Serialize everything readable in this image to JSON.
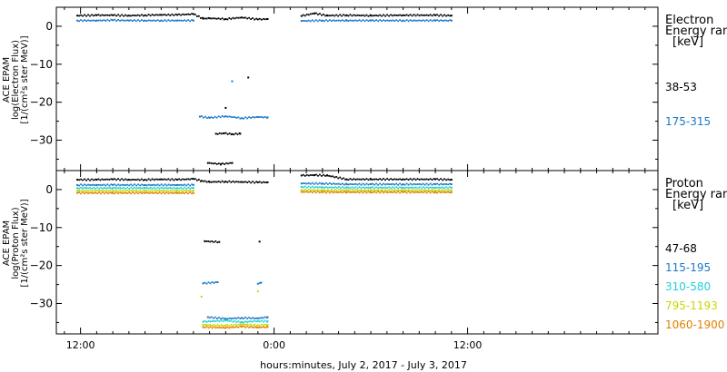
{
  "chart_data": [
    {
      "type": "scatter",
      "ylabel_lines": [
        "ACE EPAM",
        "log(Electron Flux)",
        "[1/(cm²s ster MeV)]"
      ],
      "ylim": [
        -38,
        5
      ],
      "yticks": [
        0,
        -10,
        -20,
        -30
      ],
      "legend_title": [
        "Electron",
        "Energy range",
        "[keV]"
      ],
      "series": [
        {
          "name": "38-53",
          "color": "#000000",
          "values": [
            [
              -12.2,
              2.8
            ],
            [
              -11.0,
              2.9
            ],
            [
              -10.0,
              2.9
            ],
            [
              -9.0,
              2.8
            ],
            [
              -8.0,
              2.9
            ],
            [
              -7.0,
              3.0
            ],
            [
              -6.0,
              3.0
            ],
            [
              -5.0,
              3.2
            ],
            [
              -4.4,
              2.0
            ],
            [
              -4.0,
              2.1
            ],
            [
              -3.0,
              1.9
            ],
            [
              -2.0,
              2.3
            ],
            [
              -1.0,
              1.8
            ],
            [
              -0.4,
              1.9
            ],
            [
              -4.1,
              -36
            ],
            [
              -3.3,
              -36.3
            ],
            [
              -2.6,
              -36
            ],
            [
              -3.6,
              -28.3
            ],
            [
              -3.1,
              -28.2
            ],
            [
              -2.6,
              -28.4
            ],
            [
              -2.1,
              -28.3
            ],
            [
              -3.0,
              -21.5
            ],
            [
              -1.6,
              -13.5
            ],
            [
              1.7,
              2.7
            ],
            [
              2.5,
              3.4
            ],
            [
              3.3,
              2.8
            ],
            [
              4.5,
              2.9
            ],
            [
              6.0,
              2.8
            ],
            [
              8.0,
              2.9
            ],
            [
              10.0,
              2.9
            ],
            [
              11.0,
              2.8
            ]
          ]
        },
        {
          "name": "175-315",
          "color": "#1a78c8",
          "values": [
            [
              -12.2,
              1.5
            ],
            [
              -11.0,
              1.5
            ],
            [
              -10.0,
              1.6
            ],
            [
              -9.0,
              1.5
            ],
            [
              -8.0,
              1.5
            ],
            [
              -7.0,
              1.5
            ],
            [
              -6.0,
              1.5
            ],
            [
              -5.0,
              1.5
            ],
            [
              -4.6,
              -23.8
            ],
            [
              -4.0,
              -24.1
            ],
            [
              -3.0,
              -23.7
            ],
            [
              -2.0,
              -24.2
            ],
            [
              -1.0,
              -23.9
            ],
            [
              -0.4,
              -24.0
            ],
            [
              -2.6,
              -14.5
            ],
            [
              1.7,
              1.4
            ],
            [
              3.0,
              1.5
            ],
            [
              4.5,
              1.5
            ],
            [
              6.0,
              1.5
            ],
            [
              8.0,
              1.5
            ],
            [
              10.0,
              1.5
            ],
            [
              11.0,
              1.5
            ]
          ]
        }
      ]
    },
    {
      "type": "scatter",
      "ylabel_lines": [
        "ACE EPAM",
        "log(Proton Flux)",
        "[1/(cm²s ster MeV)]"
      ],
      "ylim": [
        -38,
        5
      ],
      "yticks": [
        0,
        -10,
        -20,
        -30
      ],
      "legend_title": [
        "Proton",
        "Energy range",
        "[keV]"
      ],
      "series": [
        {
          "name": "47-68",
          "color": "#000000",
          "values": [
            [
              -12.2,
              2.6
            ],
            [
              -11.0,
              2.6
            ],
            [
              -10.0,
              2.7
            ],
            [
              -9.0,
              2.6
            ],
            [
              -8.0,
              2.6
            ],
            [
              -7.0,
              2.7
            ],
            [
              -6.0,
              2.6
            ],
            [
              -5.0,
              2.8
            ],
            [
              -4.5,
              2.3
            ],
            [
              -4.0,
              2.0
            ],
            [
              -3.0,
              2.1
            ],
            [
              -2.0,
              2.0
            ],
            [
              -1.0,
              1.9
            ],
            [
              -0.4,
              1.9
            ],
            [
              -4.3,
              -13.6
            ],
            [
              -3.4,
              -13.8
            ],
            [
              -0.9,
              -13.7
            ],
            [
              1.7,
              3.7
            ],
            [
              2.5,
              3.8
            ],
            [
              3.3,
              3.7
            ],
            [
              4.5,
              2.7
            ],
            [
              6.0,
              2.7
            ],
            [
              8.0,
              2.7
            ],
            [
              10.0,
              2.7
            ],
            [
              11.0,
              2.6
            ]
          ]
        },
        {
          "name": "115-195",
          "color": "#1a78c8",
          "values": [
            [
              -12.2,
              1.2
            ],
            [
              -11.0,
              1.2
            ],
            [
              -10.0,
              1.2
            ],
            [
              -8.0,
              1.2
            ],
            [
              -6.0,
              1.2
            ],
            [
              -5.0,
              1.2
            ],
            [
              -4.4,
              -24.7
            ],
            [
              -3.5,
              -24.4
            ],
            [
              -1.0,
              -24.8
            ],
            [
              -0.8,
              -24.5
            ],
            [
              -4.1,
              -33.6
            ],
            [
              -3.0,
              -34.0
            ],
            [
              -2.0,
              -33.8
            ],
            [
              -1.0,
              -33.9
            ],
            [
              -0.4,
              -33.6
            ],
            [
              1.7,
              1.6
            ],
            [
              3.0,
              1.6
            ],
            [
              4.5,
              1.4
            ],
            [
              6.0,
              1.4
            ],
            [
              8.0,
              1.4
            ],
            [
              10.0,
              1.4
            ],
            [
              11.0,
              1.4
            ]
          ]
        },
        {
          "name": "310-580",
          "color": "#20d0d8",
          "values": [
            [
              -12.2,
              0.4
            ],
            [
              -10.0,
              0.4
            ],
            [
              -8.0,
              0.4
            ],
            [
              -6.0,
              0.4
            ],
            [
              -5.0,
              0.4
            ],
            [
              -4.4,
              -34.8
            ],
            [
              -3.0,
              -34.5
            ],
            [
              -2.0,
              -34.9
            ],
            [
              -1.0,
              -34.6
            ],
            [
              -0.4,
              -34.7
            ],
            [
              1.7,
              0.7
            ],
            [
              3.0,
              0.6
            ],
            [
              4.5,
              0.5
            ],
            [
              6.0,
              0.5
            ],
            [
              8.0,
              0.5
            ],
            [
              10.0,
              0.5
            ],
            [
              11.0,
              0.5
            ]
          ]
        },
        {
          "name": "795-1193",
          "color": "#c8d800",
          "values": [
            [
              -12.2,
              -0.3
            ],
            [
              -10.0,
              -0.3
            ],
            [
              -8.0,
              -0.3
            ],
            [
              -6.0,
              -0.3
            ],
            [
              -5.0,
              -0.3
            ],
            [
              -4.5,
              -28.2
            ],
            [
              -1.0,
              -26.8
            ],
            [
              -4.4,
              -35.6
            ],
            [
              -3.0,
              -35.8
            ],
            [
              -2.0,
              -35.5
            ],
            [
              -1.0,
              -35.7
            ],
            [
              -0.4,
              -35.6
            ],
            [
              1.7,
              -0.1
            ],
            [
              3.0,
              -0.2
            ],
            [
              4.5,
              -0.2
            ],
            [
              6.0,
              -0.2
            ],
            [
              8.0,
              -0.2
            ],
            [
              10.0,
              -0.2
            ],
            [
              11.0,
              -0.2
            ]
          ]
        },
        {
          "name": "1060-1900",
          "color": "#e08000",
          "values": [
            [
              -12.2,
              -0.9
            ],
            [
              -10.0,
              -0.9
            ],
            [
              -8.0,
              -0.9
            ],
            [
              -6.0,
              -0.9
            ],
            [
              -5.0,
              -0.9
            ],
            [
              -4.4,
              -36.2
            ],
            [
              -3.0,
              -36.4
            ],
            [
              -2.0,
              -36.1
            ],
            [
              -1.0,
              -36.3
            ],
            [
              -0.4,
              -36.2
            ],
            [
              1.7,
              -0.6
            ],
            [
              3.0,
              -0.7
            ],
            [
              4.5,
              -0.7
            ],
            [
              6.0,
              -0.7
            ],
            [
              8.0,
              -0.7
            ],
            [
              10.0,
              -0.7
            ],
            [
              11.0,
              -0.7
            ]
          ]
        }
      ]
    }
  ],
  "x_axis": {
    "label": "hours:minutes, July  2, 2017 - July  3, 2017",
    "xlim": [
      -13.5,
      23.8
    ],
    "ticks": [
      {
        "value": -12,
        "label": "12:00"
      },
      {
        "value": 0,
        "label": "0:00"
      },
      {
        "value": 12,
        "label": "12:00"
      }
    ],
    "minor_tick_step": 1
  }
}
